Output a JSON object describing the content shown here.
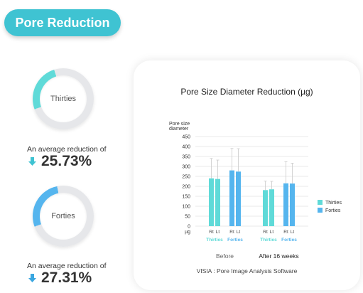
{
  "header": {
    "title": "Pore Reduction"
  },
  "stats": [
    {
      "name": "Thirties",
      "avg_label": "An average reduction of",
      "value": "25.73%",
      "percent": 25.73,
      "ring_color": "#5fdad8",
      "arrow_color": "#3fc3d2"
    },
    {
      "name": "Forties",
      "avg_label": "An average reduction of",
      "value": "27.31%",
      "percent": 27.31,
      "ring_color": "#55b5ee",
      "arrow_color": "#3aa7e0"
    }
  ],
  "chart_data": {
    "type": "bar",
    "title": "Pore Size Diameter Reduction (µg)",
    "ylabel": "Pore size diameter",
    "yunit": "µg",
    "ylim": [
      0,
      450
    ],
    "yticks": [
      0,
      50,
      100,
      150,
      200,
      250,
      300,
      350,
      400,
      450
    ],
    "grid": true,
    "legend_position": "right",
    "groups": [
      {
        "label": "Before",
        "subgroups": [
          {
            "name": "Thirties",
            "bars": [
              {
                "label": "Rt",
                "value": 240,
                "err": 100
              },
              {
                "label": "Lt",
                "value": 237,
                "err": 95
              }
            ]
          },
          {
            "name": "Forties",
            "bars": [
              {
                "label": "Rt",
                "value": 280,
                "err": 110
              },
              {
                "label": "Lt",
                "value": 274,
                "err": 115
              }
            ]
          }
        ]
      },
      {
        "label": "After 16 weeks",
        "subgroups": [
          {
            "name": "Thirties",
            "bars": [
              {
                "label": "Rt",
                "value": 181,
                "err": 45
              },
              {
                "label": "Lt",
                "value": 185,
                "err": 40
              }
            ]
          },
          {
            "name": "Forties",
            "bars": [
              {
                "label": "Rt",
                "value": 215,
                "err": 108
              },
              {
                "label": "Lt",
                "value": 214,
                "err": 102
              }
            ]
          }
        ]
      }
    ],
    "series": [
      {
        "name": "Thirties",
        "color": "#5fdad8"
      },
      {
        "name": "Forties",
        "color": "#55b5ee"
      }
    ]
  },
  "footnote": "VISIA : Pore Image Analysis Software"
}
